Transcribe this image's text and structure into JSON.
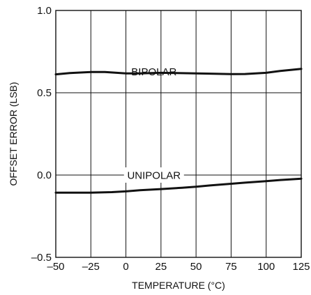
{
  "chart_data": {
    "type": "line",
    "xlabel": "TEMPERATURE (°C)",
    "ylabel": "OFFSET ERROR (LSB)",
    "xlim": [
      -50,
      125
    ],
    "ylim": [
      -0.5,
      1.0
    ],
    "grid": true,
    "x_ticks": [
      -50,
      -25,
      0,
      25,
      50,
      75,
      100,
      125
    ],
    "x_tick_labels": [
      "–50",
      "–25",
      "0",
      "25",
      "50",
      "75",
      "100",
      "125"
    ],
    "y_ticks": [
      -0.5,
      0.0,
      0.5,
      1.0
    ],
    "y_tick_labels": [
      "–0.5",
      "0.0",
      "0.5",
      "1.0"
    ],
    "series": [
      {
        "name": "BIPOLAR",
        "x": [
          -50,
          -40,
          -25,
          -15,
          0,
          10,
          25,
          40,
          50,
          60,
          75,
          85,
          100,
          110,
          125
        ],
        "y": [
          0.612,
          0.62,
          0.626,
          0.626,
          0.618,
          0.618,
          0.621,
          0.619,
          0.618,
          0.616,
          0.613,
          0.614,
          0.621,
          0.632,
          0.645
        ]
      },
      {
        "name": "UNIPOLAR",
        "x": [
          -50,
          -40,
          -25,
          -10,
          0,
          10,
          25,
          40,
          50,
          60,
          75,
          85,
          100,
          110,
          125
        ],
        "y": [
          -0.107,
          -0.107,
          -0.107,
          -0.104,
          -0.099,
          -0.092,
          -0.085,
          -0.077,
          -0.071,
          -0.063,
          -0.053,
          -0.046,
          -0.037,
          -0.03,
          -0.022
        ]
      }
    ],
    "color": "#111111"
  }
}
